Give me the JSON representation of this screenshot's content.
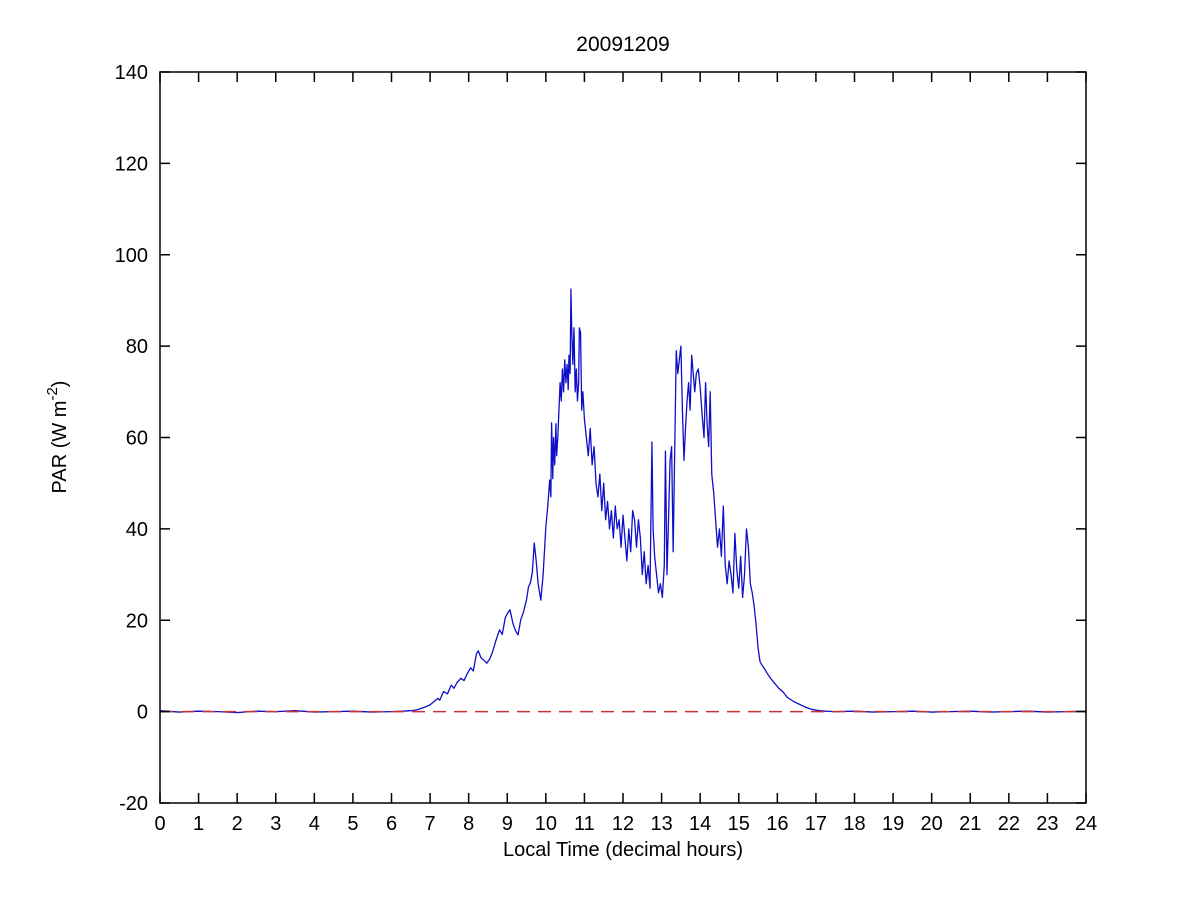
{
  "figure": {
    "background": "#ffffff"
  },
  "chart_data": {
    "type": "line",
    "title": "20091209",
    "xlabel": "Local Time (decimal hours)",
    "ylabel": "PAR (W m-2)",
    "ylabel_parts": {
      "main": "PAR (W m",
      "sup": "-2",
      "close": ")"
    },
    "xlim": [
      0,
      24
    ],
    "ylim": [
      -20,
      140
    ],
    "x_ticks": [
      0,
      1,
      2,
      3,
      4,
      5,
      6,
      7,
      8,
      9,
      10,
      11,
      12,
      13,
      14,
      15,
      16,
      17,
      18,
      19,
      20,
      21,
      22,
      23,
      24
    ],
    "y_ticks": [
      -20,
      0,
      20,
      40,
      60,
      80,
      100,
      120,
      140
    ],
    "grid": false,
    "legend": "none",
    "box": true,
    "tick_direction": "in",
    "axis_color": "#000000",
    "series": [
      {
        "name": "PAR",
        "color": "#0f0fc8",
        "line_style": "solid",
        "points": [
          [
            0,
            0.2
          ],
          [
            0.5,
            -0.1
          ],
          [
            1,
            0.1
          ],
          [
            1.5,
            0
          ],
          [
            2,
            -0.2
          ],
          [
            2.5,
            0.1
          ],
          [
            3,
            0
          ],
          [
            3.5,
            0.2
          ],
          [
            4,
            -0.1
          ],
          [
            4.5,
            0
          ],
          [
            5,
            0.1
          ],
          [
            5.5,
            -0.1
          ],
          [
            6,
            0
          ],
          [
            6.3,
            0.1
          ],
          [
            6.5,
            0.2
          ],
          [
            6.6,
            0.3
          ],
          [
            6.7,
            0.5
          ],
          [
            6.8,
            0.8
          ],
          [
            6.9,
            1.1
          ],
          [
            7.0,
            1.5
          ],
          [
            7.1,
            2.2
          ],
          [
            7.2,
            2.9
          ],
          [
            7.25,
            2.5
          ],
          [
            7.35,
            4.4
          ],
          [
            7.45,
            3.9
          ],
          [
            7.55,
            5.8
          ],
          [
            7.62,
            5.1
          ],
          [
            7.7,
            6.4
          ],
          [
            7.8,
            7.3
          ],
          [
            7.88,
            6.8
          ],
          [
            7.95,
            8.1
          ],
          [
            8.05,
            9.6
          ],
          [
            8.12,
            8.9
          ],
          [
            8.2,
            12.6
          ],
          [
            8.25,
            13.3
          ],
          [
            8.32,
            11.8
          ],
          [
            8.4,
            11.2
          ],
          [
            8.47,
            10.6
          ],
          [
            8.55,
            11.6
          ],
          [
            8.62,
            13.1
          ],
          [
            8.7,
            15.4
          ],
          [
            8.8,
            17.9
          ],
          [
            8.87,
            16.9
          ],
          [
            8.95,
            20.6
          ],
          [
            9.0,
            21.4
          ],
          [
            9.07,
            22.3
          ],
          [
            9.15,
            19.2
          ],
          [
            9.22,
            17.6
          ],
          [
            9.28,
            16.8
          ],
          [
            9.35,
            20.1
          ],
          [
            9.42,
            21.8
          ],
          [
            9.5,
            24.5
          ],
          [
            9.55,
            27.3
          ],
          [
            9.6,
            28.2
          ],
          [
            9.65,
            30.5
          ],
          [
            9.7,
            36.9
          ],
          [
            9.75,
            33.0
          ],
          [
            9.8,
            28.0
          ],
          [
            9.87,
            24.4
          ],
          [
            9.93,
            30.0
          ],
          [
            10.0,
            40.4
          ],
          [
            10.05,
            45.0
          ],
          [
            10.1,
            50.7
          ],
          [
            10.13,
            47.0
          ],
          [
            10.15,
            63.2
          ],
          [
            10.18,
            51.0
          ],
          [
            10.2,
            60.0
          ],
          [
            10.23,
            54.0
          ],
          [
            10.26,
            63.0
          ],
          [
            10.28,
            56.0
          ],
          [
            10.31,
            60.0
          ],
          [
            10.34,
            66.0
          ],
          [
            10.37,
            72.0
          ],
          [
            10.4,
            68.0
          ],
          [
            10.43,
            75.0
          ],
          [
            10.46,
            70.0
          ],
          [
            10.49,
            77.0
          ],
          [
            10.52,
            72.0
          ],
          [
            10.55,
            76.0
          ],
          [
            10.58,
            70.5
          ],
          [
            10.6,
            78.0
          ],
          [
            10.63,
            74.0
          ],
          [
            10.65,
            92.5
          ],
          [
            10.67,
            84.0
          ],
          [
            10.7,
            76.0
          ],
          [
            10.73,
            84.0
          ],
          [
            10.76,
            70.0
          ],
          [
            10.79,
            75.0
          ],
          [
            10.82,
            68.0
          ],
          [
            10.85,
            72.0
          ],
          [
            10.87,
            84.0
          ],
          [
            10.9,
            83.0
          ],
          [
            10.93,
            66.0
          ],
          [
            10.96,
            70.0
          ],
          [
            11.0,
            64.0
          ],
          [
            11.05,
            60
          ],
          [
            11.1,
            56
          ],
          [
            11.15,
            62
          ],
          [
            11.2,
            54
          ],
          [
            11.25,
            58
          ],
          [
            11.3,
            50
          ],
          [
            11.35,
            47
          ],
          [
            11.4,
            52
          ],
          [
            11.45,
            44
          ],
          [
            11.5,
            50
          ],
          [
            11.55,
            42
          ],
          [
            11.6,
            46
          ],
          [
            11.65,
            40
          ],
          [
            11.7,
            44
          ],
          [
            11.75,
            38
          ],
          [
            11.8,
            45
          ],
          [
            11.85,
            40
          ],
          [
            11.9,
            42
          ],
          [
            11.95,
            36
          ],
          [
            12.0,
            43
          ],
          [
            12.05,
            38
          ],
          [
            12.1,
            33
          ],
          [
            12.15,
            40
          ],
          [
            12.2,
            35
          ],
          [
            12.25,
            44
          ],
          [
            12.3,
            42
          ],
          [
            12.35,
            36
          ],
          [
            12.4,
            42
          ],
          [
            12.45,
            38
          ],
          [
            12.5,
            30
          ],
          [
            12.55,
            35
          ],
          [
            12.6,
            28
          ],
          [
            12.65,
            32
          ],
          [
            12.7,
            27
          ],
          [
            12.75,
            59
          ],
          [
            12.78,
            40
          ],
          [
            12.82,
            34
          ],
          [
            12.87,
            30
          ],
          [
            12.92,
            26
          ],
          [
            12.97,
            28
          ],
          [
            13.02,
            25
          ],
          [
            13.07,
            32
          ],
          [
            13.1,
            57
          ],
          [
            13.14,
            30
          ],
          [
            13.18,
            42
          ],
          [
            13.22,
            55
          ],
          [
            13.26,
            58
          ],
          [
            13.3,
            35
          ],
          [
            13.34,
            57
          ],
          [
            13.38,
            79
          ],
          [
            13.42,
            74
          ],
          [
            13.46,
            77
          ],
          [
            13.5,
            80
          ],
          [
            13.54,
            66
          ],
          [
            13.58,
            55
          ],
          [
            13.62,
            62
          ],
          [
            13.66,
            68
          ],
          [
            13.7,
            72
          ],
          [
            13.74,
            66
          ],
          [
            13.78,
            78
          ],
          [
            13.82,
            74
          ],
          [
            13.86,
            70
          ],
          [
            13.9,
            74
          ],
          [
            13.95,
            75
          ],
          [
            14.0,
            71
          ],
          [
            14.05,
            65
          ],
          [
            14.1,
            60
          ],
          [
            14.14,
            72
          ],
          [
            14.18,
            63
          ],
          [
            14.22,
            58
          ],
          [
            14.26,
            70
          ],
          [
            14.3,
            52
          ],
          [
            14.35,
            48
          ],
          [
            14.4,
            42
          ],
          [
            14.45,
            36
          ],
          [
            14.5,
            40
          ],
          [
            14.55,
            34
          ],
          [
            14.6,
            45
          ],
          [
            14.65,
            32
          ],
          [
            14.7,
            28
          ],
          [
            14.75,
            33
          ],
          [
            14.8,
            30
          ],
          [
            14.85,
            26
          ],
          [
            14.9,
            39
          ],
          [
            14.95,
            31
          ],
          [
            15.0,
            27
          ],
          [
            15.05,
            34
          ],
          [
            15.1,
            25
          ],
          [
            15.15,
            30
          ],
          [
            15.2,
            40
          ],
          [
            15.25,
            36
          ],
          [
            15.3,
            28
          ],
          [
            15.35,
            26
          ],
          [
            15.4,
            23
          ],
          [
            15.45,
            19
          ],
          [
            15.5,
            14
          ],
          [
            15.55,
            11
          ],
          [
            15.6,
            10.2
          ],
          [
            15.68,
            9.2
          ],
          [
            15.75,
            8.2
          ],
          [
            15.85,
            7.0
          ],
          [
            15.95,
            6.0
          ],
          [
            16.05,
            5.0
          ],
          [
            16.15,
            4.3
          ],
          [
            16.25,
            3.2
          ],
          [
            16.35,
            2.6
          ],
          [
            16.45,
            2.1
          ],
          [
            16.55,
            1.7
          ],
          [
            16.65,
            1.3
          ],
          [
            16.75,
            0.9
          ],
          [
            16.85,
            0.6
          ],
          [
            16.95,
            0.4
          ],
          [
            17.1,
            0.2
          ],
          [
            17.25,
            0.1
          ],
          [
            17.5,
            0
          ],
          [
            18,
            0.1
          ],
          [
            18.5,
            -0.1
          ],
          [
            19,
            0
          ],
          [
            19.5,
            0.1
          ],
          [
            20,
            -0.1
          ],
          [
            20.5,
            0
          ],
          [
            21,
            0.1
          ],
          [
            21.5,
            -0.1
          ],
          [
            22,
            0
          ],
          [
            22.5,
            0.1
          ],
          [
            23,
            -0.1
          ],
          [
            23.5,
            0
          ],
          [
            24,
            0.1
          ]
        ]
      },
      {
        "name": "zero-reference",
        "color": "#c83232",
        "line_style": "dashed",
        "points": [
          [
            0,
            0
          ],
          [
            24,
            0
          ]
        ]
      }
    ]
  }
}
